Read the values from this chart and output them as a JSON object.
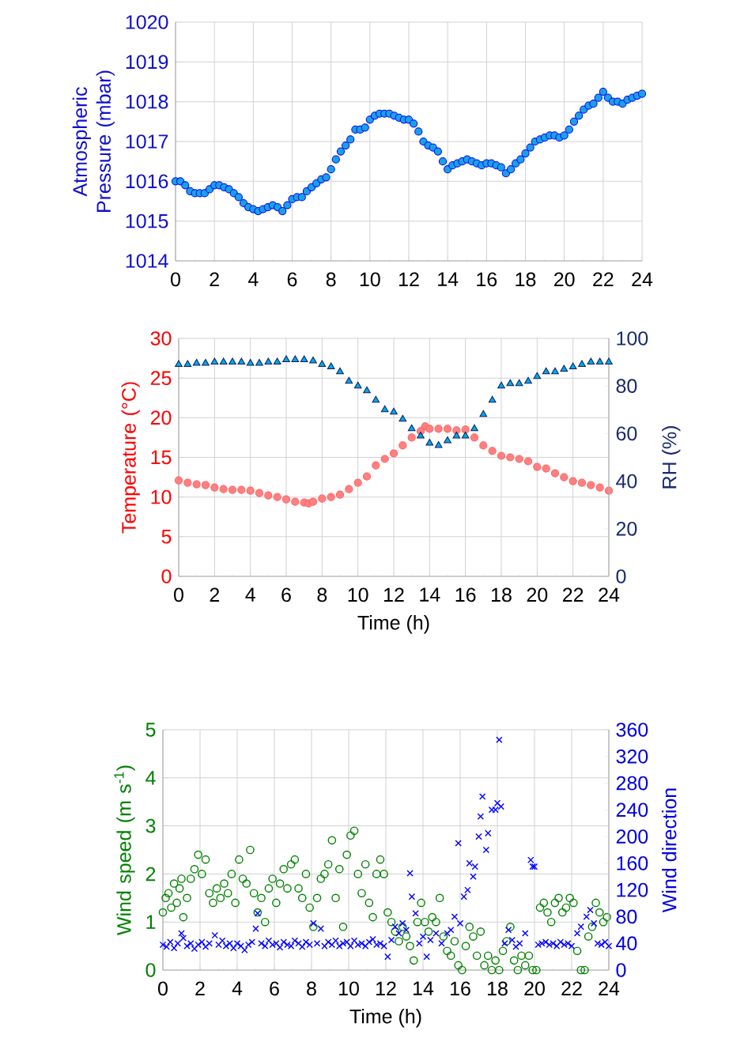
{
  "chart_data": [
    {
      "type": "scatter",
      "ylabel": "Atmospheric Pressure (mbar)",
      "xlim": [
        0,
        24
      ],
      "ylim": [
        1014,
        1020
      ],
      "xticks": [
        0,
        2,
        4,
        6,
        8,
        10,
        12,
        14,
        16,
        18,
        20,
        22,
        24
      ],
      "yticks": [
        1014,
        1015,
        1016,
        1017,
        1018,
        1019,
        1020
      ],
      "grid": true,
      "series": [
        {
          "color": "#1BA1E2",
          "marker": "circle",
          "x": [
            0,
            0.25,
            0.5,
            0.75,
            1,
            1.25,
            1.5,
            1.75,
            2,
            2.25,
            2.5,
            2.75,
            3,
            3.25,
            3.5,
            3.75,
            4,
            4.25,
            4.5,
            4.75,
            5,
            5.25,
            5.5,
            5.75,
            6,
            6.25,
            6.5,
            6.75,
            7,
            7.25,
            7.5,
            7.75,
            8,
            8.25,
            8.5,
            8.75,
            9,
            9.25,
            9.5,
            9.75,
            10,
            10.25,
            10.5,
            10.75,
            11,
            11.25,
            11.5,
            11.75,
            12,
            12.25,
            12.5,
            12.75,
            13,
            13.25,
            13.5,
            13.75,
            14,
            14.25,
            14.5,
            14.75,
            15,
            15.25,
            15.5,
            15.75,
            16,
            16.25,
            16.5,
            16.75,
            17,
            17.25,
            17.5,
            17.75,
            18,
            18.25,
            18.5,
            18.75,
            19,
            19.25,
            19.5,
            19.75,
            20,
            20.25,
            20.5,
            20.75,
            21,
            21.25,
            21.5,
            21.75,
            22,
            22.25,
            22.5,
            22.75,
            23,
            23.25,
            23.5,
            23.75,
            24
          ],
          "values": [
            1016.0,
            1016.0,
            1015.9,
            1015.75,
            1015.7,
            1015.7,
            1015.7,
            1015.8,
            1015.9,
            1015.9,
            1015.85,
            1015.8,
            1015.7,
            1015.6,
            1015.45,
            1015.35,
            1015.3,
            1015.25,
            1015.3,
            1015.35,
            1015.4,
            1015.35,
            1015.25,
            1015.4,
            1015.55,
            1015.6,
            1015.6,
            1015.75,
            1015.85,
            1015.95,
            1016.05,
            1016.1,
            1016.3,
            1016.55,
            1016.75,
            1016.9,
            1017.05,
            1017.3,
            1017.3,
            1017.35,
            1017.55,
            1017.65,
            1017.7,
            1017.7,
            1017.7,
            1017.65,
            1017.6,
            1017.55,
            1017.55,
            1017.45,
            1017.25,
            1017.0,
            1016.9,
            1016.85,
            1016.75,
            1016.5,
            1016.3,
            1016.4,
            1016.45,
            1016.5,
            1016.55,
            1016.5,
            1016.45,
            1016.4,
            1016.45,
            1016.45,
            1016.4,
            1016.35,
            1016.2,
            1016.3,
            1016.45,
            1016.55,
            1016.7,
            1016.85,
            1017.0,
            1017.05,
            1017.1,
            1017.15,
            1017.15,
            1017.1,
            1017.15,
            1017.3,
            1017.5,
            1017.65,
            1017.8,
            1017.9,
            1017.95,
            1018.1,
            1018.25,
            1018.1,
            1018.0,
            1018.0,
            1017.95,
            1018.05,
            1018.1,
            1018.15,
            1018.2
          ]
        }
      ]
    },
    {
      "type": "scatter",
      "xlabel": "Time (h)",
      "ylabel": "Temperature (°C)",
      "y2label": "RH (%)",
      "xlim": [
        0,
        24
      ],
      "ylim": [
        0,
        30
      ],
      "y2lim": [
        0,
        100
      ],
      "xticks": [
        0,
        2,
        4,
        6,
        8,
        10,
        12,
        14,
        16,
        18,
        20,
        22,
        24
      ],
      "yticks": [
        0,
        5,
        10,
        15,
        20,
        25,
        30
      ],
      "y2ticks": [
        0,
        20,
        40,
        60,
        80,
        100
      ],
      "grid": true,
      "series": [
        {
          "color": "#FF8080",
          "marker": "circle",
          "x": [
            0,
            0.5,
            1,
            1.5,
            2,
            2.5,
            3,
            3.5,
            4,
            4.5,
            5,
            5.5,
            6,
            6.5,
            7,
            7.25,
            7.5,
            8,
            8.5,
            9,
            9.5,
            10,
            10.5,
            11,
            11.5,
            12,
            12.5,
            13,
            13.5,
            13.75,
            14,
            14.5,
            15,
            15.5,
            16,
            16.5,
            17,
            17.5,
            18,
            18.5,
            19,
            19.5,
            20,
            20.5,
            21,
            21.5,
            22,
            22.5,
            23,
            23.5,
            24
          ],
          "values": [
            12.1,
            11.8,
            11.6,
            11.5,
            11.2,
            11.0,
            10.9,
            10.9,
            10.8,
            10.5,
            10.2,
            10.0,
            9.7,
            9.4,
            9.3,
            9.2,
            9.4,
            9.8,
            10.0,
            10.3,
            11.0,
            11.8,
            12.6,
            14.0,
            14.8,
            15.5,
            16.5,
            17.5,
            18.3,
            18.9,
            18.6,
            18.6,
            18.6,
            18.4,
            18.5,
            17.5,
            16.5,
            15.8,
            15.2,
            15.0,
            14.8,
            14.5,
            13.8,
            13.6,
            13.0,
            12.5,
            12.0,
            11.8,
            11.5,
            11.2,
            10.8
          ]
        },
        {
          "color": "#00A8E8",
          "marker": "triangle",
          "axis": "y2",
          "x": [
            0,
            0.5,
            1,
            1.5,
            2,
            2.5,
            3,
            3.5,
            4,
            4.5,
            5,
            5.5,
            6,
            6.5,
            7,
            7.5,
            8,
            8.5,
            9,
            9.5,
            10,
            10.5,
            11,
            11.5,
            12,
            12.5,
            13,
            13.5,
            14,
            14.5,
            15,
            15.5,
            16,
            16.5,
            17,
            17.5,
            18,
            18.5,
            19,
            19.5,
            20,
            20.5,
            21,
            21.5,
            22,
            22.5,
            23,
            23.5,
            24
          ],
          "values": [
            89,
            89,
            89.5,
            89.5,
            90,
            90,
            90,
            90,
            89.5,
            89.5,
            90,
            90,
            91,
            91,
            91,
            90.5,
            89,
            88,
            86,
            82,
            80,
            78,
            74,
            70,
            69,
            66,
            62,
            59,
            56,
            55,
            57,
            59,
            59,
            62,
            68,
            74,
            80,
            81,
            81,
            82,
            84,
            86,
            86,
            87,
            88,
            89,
            90,
            90,
            90
          ]
        }
      ]
    },
    {
      "type": "scatter",
      "xlabel": "Time (h)",
      "ylabel": "Wind speed (m s$^{-1}$)",
      "y2label": "Wind direction",
      "xlim": [
        0,
        24
      ],
      "ylim": [
        0,
        5
      ],
      "y2lim": [
        0,
        360
      ],
      "xticks": [
        0,
        2,
        4,
        6,
        8,
        10,
        12,
        14,
        16,
        18,
        20,
        22,
        24
      ],
      "yticks": [
        0,
        1,
        2,
        3,
        4,
        5
      ],
      "y2ticks": [
        0,
        40,
        80,
        120,
        160,
        200,
        240,
        280,
        320,
        360
      ],
      "grid": true,
      "series": [
        {
          "color": "#008000",
          "marker": "circle",
          "x": [
            0,
            0.15,
            0.3,
            0.45,
            0.6,
            0.75,
            0.9,
            1.0,
            1.1,
            1.3,
            1.5,
            1.7,
            1.9,
            2.1,
            2.3,
            2.5,
            2.7,
            2.9,
            3.1,
            3.3,
            3.5,
            3.7,
            3.9,
            4.1,
            4.3,
            4.5,
            4.7,
            4.9,
            5.1,
            5.3,
            5.5,
            5.7,
            5.9,
            6.1,
            6.3,
            6.5,
            6.7,
            6.9,
            7.1,
            7.3,
            7.5,
            7.7,
            7.9,
            8.1,
            8.3,
            8.5,
            8.7,
            8.9,
            9.1,
            9.3,
            9.5,
            9.7,
            9.9,
            10.1,
            10.3,
            10.5,
            10.7,
            10.9,
            11.1,
            11.3,
            11.5,
            11.7,
            11.9,
            12.1,
            12.3,
            12.5,
            12.7,
            12.9,
            13.1,
            13.3,
            13.5,
            13.7,
            13.9,
            14.1,
            14.3,
            14.5,
            14.7,
            14.9,
            15.1,
            15.3,
            15.5,
            15.7,
            15.9,
            16.1,
            16.3,
            16.5,
            16.7,
            16.9,
            17.1,
            17.3,
            17.5,
            17.7,
            17.9,
            18.1,
            18.3,
            18.5,
            18.7,
            18.9,
            19.1,
            19.3,
            19.5,
            19.7,
            19.9,
            20.1,
            20.3,
            20.5,
            20.7,
            20.9,
            21.1,
            21.3,
            21.5,
            21.7,
            21.9,
            22.1,
            22.3,
            22.5,
            22.7,
            22.9,
            23.1,
            23.3,
            23.5,
            23.7,
            23.9
          ],
          "values": [
            1.2,
            1.5,
            1.6,
            1.3,
            1.8,
            1.4,
            1.7,
            1.9,
            1.1,
            1.5,
            1.9,
            2.1,
            2.4,
            2.0,
            2.3,
            1.6,
            1.4,
            1.7,
            1.5,
            1.8,
            1.6,
            2.0,
            1.4,
            2.3,
            1.9,
            1.8,
            2.5,
            1.6,
            1.2,
            1.5,
            1.0,
            1.7,
            1.9,
            1.4,
            1.8,
            2.1,
            1.7,
            2.2,
            2.3,
            1.7,
            1.5,
            2.0,
            1.3,
            0.9,
            1.5,
            1.9,
            2.0,
            2.2,
            2.7,
            1.5,
            2.1,
            0.9,
            2.4,
            2.8,
            2.9,
            2.0,
            1.6,
            2.2,
            1.4,
            1.1,
            2.0,
            2.3,
            2.0,
            1.2,
            1.0,
            0.8,
            0.6,
            0.9,
            0.7,
            0.5,
            0.2,
            1.0,
            1.4,
            1.0,
            0.8,
            1.1,
            1.0,
            1.5,
            0.7,
            0.4,
            0.3,
            0.6,
            0.1,
            0.0,
            0.5,
            0.9,
            0.7,
            0.3,
            0.8,
            0.1,
            0.3,
            0.0,
            0.2,
            0.0,
            0.4,
            0.6,
            0.9,
            0.2,
            0.0,
            0.3,
            0.1,
            0.3,
            0.0,
            0.0,
            1.3,
            1.4,
            1.2,
            1.0,
            1.4,
            1.5,
            1.2,
            1.3,
            1.5,
            1.4,
            0.4,
            0.0,
            0.0,
            0.7,
            0.9,
            1.4,
            1.2,
            1.0,
            1.1
          ]
        },
        {
          "color": "#0000FF",
          "marker": "cross",
          "axis": "y2",
          "x": [
            0,
            0.2,
            0.4,
            0.6,
            0.8,
            1.0,
            1.1,
            1.3,
            1.5,
            1.7,
            1.9,
            2.1,
            2.3,
            2.5,
            2.8,
            3.0,
            3.2,
            3.4,
            3.6,
            3.8,
            4.0,
            4.2,
            4.4,
            4.6,
            4.8,
            5.0,
            5.1,
            5.3,
            5.5,
            5.7,
            5.9,
            6.1,
            6.3,
            6.5,
            6.7,
            6.9,
            7.1,
            7.3,
            7.5,
            7.7,
            7.9,
            8.1,
            8.3,
            8.5,
            8.7,
            8.9,
            9.1,
            9.3,
            9.5,
            9.7,
            9.9,
            10.1,
            10.3,
            10.5,
            10.7,
            10.9,
            11.1,
            11.3,
            11.5,
            11.7,
            11.9,
            12.1,
            12.3,
            12.5,
            12.7,
            12.9,
            13.1,
            13.3,
            13.4,
            13.6,
            13.8,
            14.0,
            14.2,
            14.4,
            14.7,
            15.0,
            15.3,
            15.5,
            15.7,
            15.9,
            16.0,
            16.2,
            16.4,
            16.5,
            16.7,
            16.8,
            17.0,
            17.1,
            17.2,
            17.4,
            17.5,
            17.7,
            17.9,
            18.0,
            18.1,
            18.2,
            18.4,
            18.6,
            18.8,
            19.0,
            19.2,
            19.5,
            19.8,
            19.9,
            20.0,
            20.2,
            20.4,
            20.6,
            20.8,
            21.0,
            21.2,
            21.4,
            21.6,
            21.8,
            22.0,
            22.3,
            22.5,
            22.8,
            23.0,
            23.2,
            23.4,
            23.6,
            23.8,
            24.0
          ],
          "values": [
            38,
            35,
            42,
            33,
            40,
            55,
            48,
            36,
            40,
            32,
            38,
            42,
            35,
            40,
            52,
            38,
            44,
            36,
            40,
            33,
            40,
            36,
            30,
            38,
            42,
            62,
            85,
            40,
            36,
            44,
            38,
            40,
            34,
            42,
            38,
            36,
            44,
            40,
            35,
            42,
            38,
            70,
            40,
            62,
            36,
            42,
            38,
            44,
            36,
            40,
            42,
            36,
            44,
            38,
            40,
            36,
            42,
            46,
            38,
            40,
            36,
            20,
            45,
            65,
            55,
            70,
            60,
            145,
            110,
            85,
            40,
            50,
            20,
            45,
            55,
            40,
            55,
            60,
            80,
            190,
            70,
            110,
            120,
            160,
            140,
            155,
            200,
            230,
            260,
            180,
            205,
            240,
            240,
            250,
            345,
            245,
            40,
            60,
            45,
            35,
            40,
            55,
            165,
            155,
            155,
            38,
            40,
            42,
            38,
            40,
            36,
            42,
            38,
            40,
            36,
            55,
            65,
            80,
            90,
            70,
            40,
            38,
            42,
            36
          ]
        }
      ]
    }
  ]
}
